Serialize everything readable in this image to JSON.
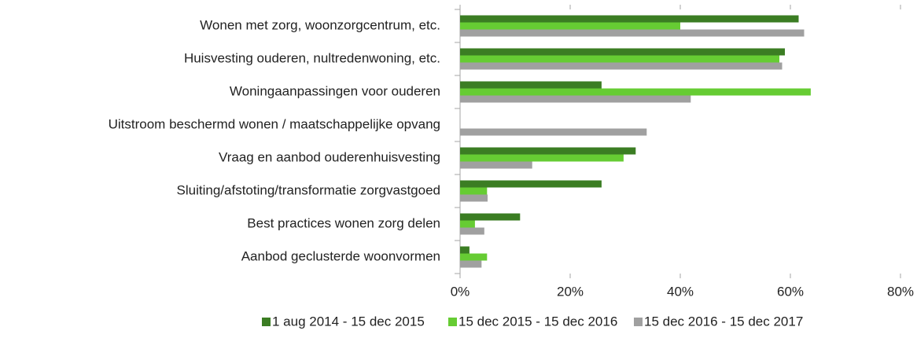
{
  "chart_data": {
    "type": "hbar",
    "categories": [
      "Wonen met zorg, woonzorgcentrum, etc.",
      "Huisvesting ouderen, nultredenwoning, etc.",
      "Woningaanpassingen voor ouderen",
      "Uitstroom beschermd wonen / maatschappelijke opvang",
      "Vraag en aanbod ouderenhuisvesting",
      "Sluiting/afstoting/transformatie zorgvastgoed",
      "Best practices wonen zorg delen",
      "Aanbod geclusterde woonvormen"
    ],
    "series": [
      {
        "name": "1 aug 2014 - 15 dec 2015",
        "color": "#3b7d23",
        "values": [
          61.5,
          59,
          25.7,
          null,
          31.9,
          25.7,
          10.9,
          1.7
        ]
      },
      {
        "name": "15 dec 2015 - 15 dec 2016",
        "color": "#66cc33",
        "values": [
          40,
          58,
          63.7,
          null,
          29.7,
          4.9,
          2.7,
          4.9
        ]
      },
      {
        "name": "15 dec 2016 - 15 dec 2017",
        "color": "#a0a0a0",
        "values": [
          62.5,
          58.5,
          41.9,
          33.9,
          13.1,
          5,
          4.4,
          3.9
        ]
      }
    ],
    "xlim": [
      0,
      80
    ],
    "xticks": [
      {
        "value": 0,
        "label": "0%"
      },
      {
        "value": 20,
        "label": "20%"
      },
      {
        "value": 40,
        "label": "40%"
      },
      {
        "value": 60,
        "label": "60%"
      },
      {
        "value": 80,
        "label": "80%"
      }
    ],
    "legend": "bottom"
  }
}
